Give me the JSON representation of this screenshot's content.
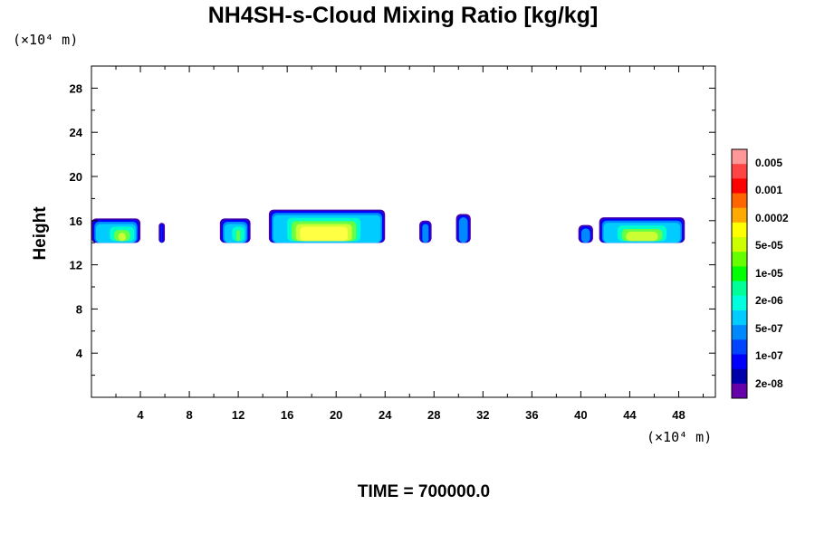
{
  "chart_data": {
    "type": "heatmap",
    "title": "NH4SH-s-Cloud Mixing Ratio [kg/kg]",
    "ylabel": "Height",
    "xunit": "(×10⁴ m)",
    "yunit": "(×10⁴ m)",
    "xlim": [
      0,
      51
    ],
    "ylim": [
      0,
      30
    ],
    "xticks": [
      "4",
      "8",
      "12",
      "16",
      "20",
      "24",
      "28",
      "32",
      "36",
      "40",
      "44",
      "48"
    ],
    "yticks": [
      "4",
      "8",
      "12",
      "16",
      "20",
      "24",
      "28"
    ],
    "xtick_values": [
      4,
      8,
      12,
      16,
      20,
      24,
      28,
      32,
      36,
      40,
      44,
      48
    ],
    "ytick_values": [
      4,
      8,
      12,
      16,
      20,
      24,
      28
    ],
    "colorbar": {
      "labels": [
        "0.005",
        "0.001",
        "0.0002",
        "5e-05",
        "1e-05",
        "2e-06",
        "5e-07",
        "1e-07",
        "2e-08"
      ],
      "colors": [
        "#ff9999",
        "#ff4444",
        "#ff0000",
        "#ff6600",
        "#ffaa00",
        "#ffff00",
        "#ccff00",
        "#66ff00",
        "#00ff00",
        "#00ff99",
        "#00ffdd",
        "#00ccff",
        "#0088ff",
        "#0044ff",
        "#0000ff",
        "#0000aa",
        "#6600aa"
      ]
    },
    "cloud_band": {
      "height_range": [
        14,
        16.5
      ],
      "clouds": [
        {
          "x": [
            0,
            4
          ],
          "top": 16.2,
          "core": [
            1.5,
            3.5
          ],
          "level": 2
        },
        {
          "x": [
            5.5,
            6
          ],
          "top": 15.8,
          "core": null,
          "level": 0
        },
        {
          "x": [
            10.5,
            13
          ],
          "top": 16.2,
          "core": [
            11.5,
            12.5
          ],
          "level": 2
        },
        {
          "x": [
            14.5,
            24
          ],
          "top": 17,
          "core": [
            16,
            22
          ],
          "level": 3
        },
        {
          "x": [
            26.8,
            27.8
          ],
          "top": 16,
          "core": null,
          "level": 0
        },
        {
          "x": [
            29.8,
            31
          ],
          "top": 16.6,
          "core": null,
          "level": 0
        },
        {
          "x": [
            39.8,
            41
          ],
          "top": 15.6,
          "core": null,
          "level": 0
        },
        {
          "x": [
            41.5,
            48.5
          ],
          "top": 16.3,
          "core": [
            43,
            47
          ],
          "level": 2
        }
      ]
    }
  },
  "footer": {
    "time_label": "TIME = 700000.0"
  }
}
